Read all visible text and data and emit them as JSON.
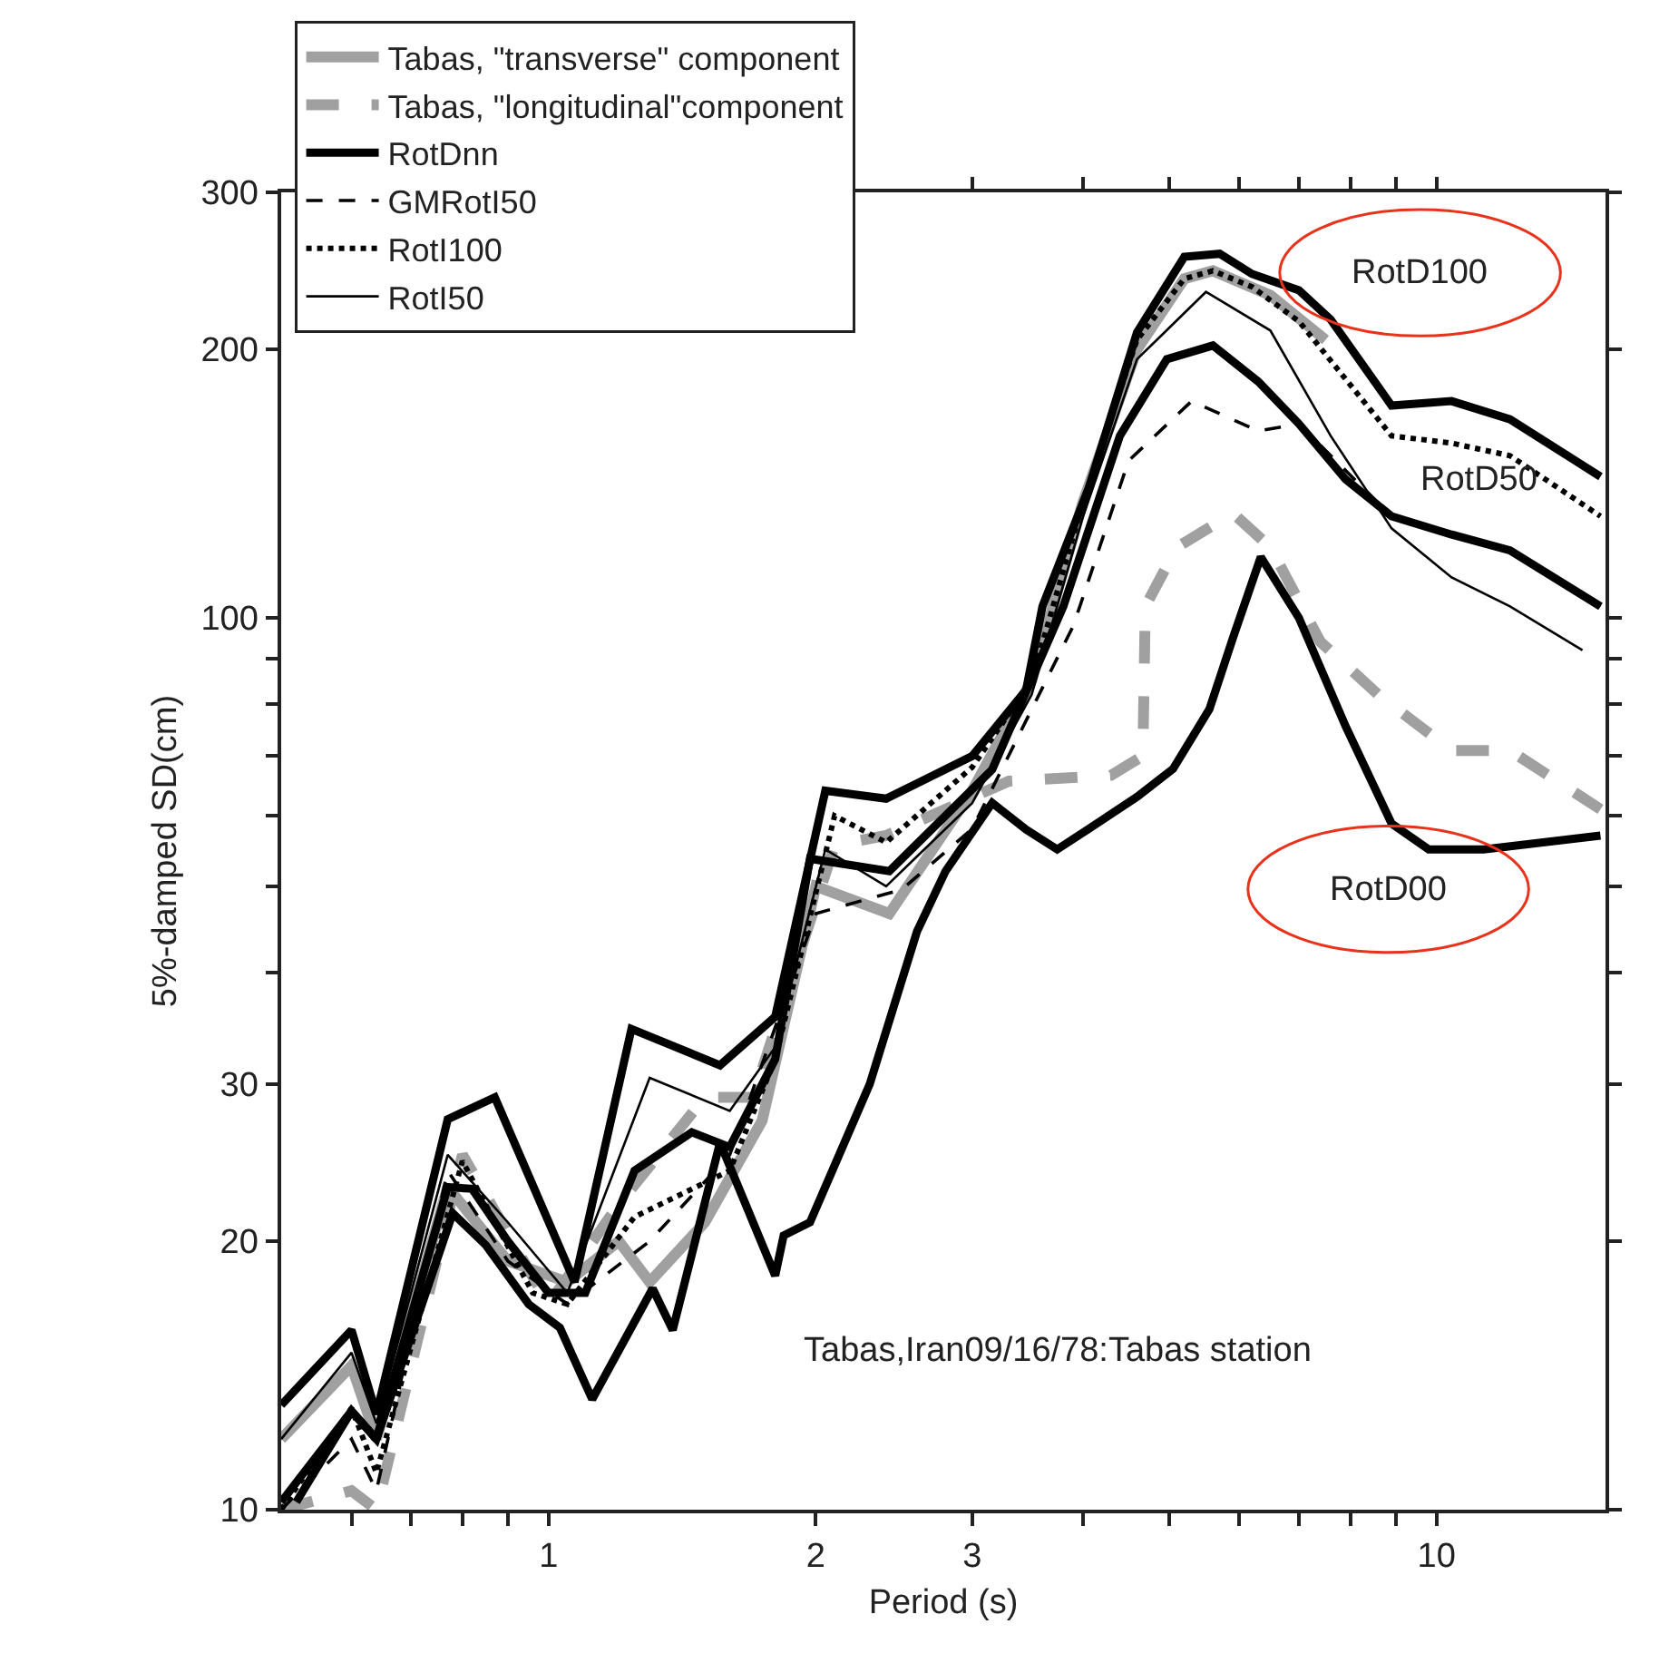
{
  "chart_data": {
    "type": "line",
    "xlabel": "Period (s)",
    "ylabel": "5%-damped SD(cm)",
    "log": "xy",
    "grid": false,
    "legend": "top left",
    "marker": "none",
    "xlim": [
      0.5,
      15.5
    ],
    "ylim": [
      10,
      300
    ],
    "xticks": [
      {
        "value": 0.6,
        "label": null
      },
      {
        "value": 0.7,
        "label": null
      },
      {
        "value": 0.8,
        "label": null
      },
      {
        "value": 0.9,
        "label": null
      },
      1,
      2,
      3,
      {
        "value": 4,
        "label": null
      },
      {
        "value": 5,
        "label": null
      },
      {
        "value": 6,
        "label": null
      },
      {
        "value": 7,
        "label": null
      },
      {
        "value": 8,
        "label": null
      },
      {
        "value": 9,
        "label": null
      },
      10
    ],
    "yticks": [
      10,
      20,
      30,
      {
        "value": 40,
        "label": null
      },
      {
        "value": 50,
        "label": null
      },
      {
        "value": 60,
        "label": null
      },
      {
        "value": 70,
        "label": null
      },
      {
        "value": 80,
        "label": null
      },
      {
        "value": 90,
        "label": null
      },
      100,
      200,
      300
    ],
    "series": [
      {
        "name": "Tabas, \"transverse\" component",
        "color": "#a0a0a0",
        "line_style": "solid",
        "x": [
          0.5,
          0.6,
          0.64,
          0.77,
          0.9,
          1.05,
          1.2,
          1.3,
          1.5,
          1.74,
          2.0,
          2.42,
          3.0,
          3.5,
          4.0,
          4.6,
          5.2,
          5.6,
          6.5,
          7.5
        ],
        "values": [
          12,
          14.5,
          12,
          23,
          19,
          18,
          20,
          18,
          21,
          27.3,
          50,
          46.6,
          64,
          85,
          135,
          200,
          240,
          245,
          230,
          205
        ]
      },
      {
        "name": "Tabas, \"longitudinal\"component",
        "color": "#a0a0a0",
        "line_style": "dashed",
        "x": [
          0.5,
          0.6,
          0.64,
          0.8,
          1.0,
          1.2,
          1.5,
          1.7,
          2.1,
          2.4,
          3.3,
          4.3,
          4.67,
          4.7,
          5.1,
          5.9,
          6.5,
          7.4,
          8.6,
          10.4,
          12.1,
          15.3
        ],
        "values": [
          10,
          10.5,
          10,
          25,
          17,
          22,
          29,
          29,
          55.6,
          57,
          65.6,
          66.6,
          70,
          103,
          120,
          131,
          120,
          94,
          82,
          71,
          71,
          61
        ]
      },
      {
        "name": "RotDnn",
        "color": "#000000",
        "line_style": "solid",
        "x": [
          0.5,
          0.6,
          0.64,
          0.77,
          0.87,
          1.07,
          1.24,
          1.56,
          1.8,
          2.05,
          2.4,
          3.0,
          3.45,
          3.6,
          4.06,
          4.6,
          5.2,
          5.7,
          6.2,
          7.0,
          7.6,
          8.9,
          10.4,
          12.1,
          15.3
        ],
        "values": [
          13.1,
          15.9,
          12.8,
          27.4,
          29,
          18,
          34.6,
          31.5,
          35.7,
          64,
          62.7,
          70,
          83,
          103,
          140,
          209,
          254,
          256,
          243,
          233,
          216,
          173,
          175,
          167,
          144
        ]
      },
      {
        "name": "GMRotI50",
        "color": "#000000",
        "line_style": "dashed",
        "x": [
          0.5,
          0.6,
          0.64,
          0.77,
          0.9,
          1.05,
          1.3,
          1.6,
          2.0,
          2.5,
          3.0,
          3.9,
          4.5,
          5.3,
          6.3,
          7.0,
          8.9,
          10.4,
          12.1,
          15.3
        ],
        "values": [
          10,
          12,
          10.5,
          24,
          19,
          17,
          20,
          25,
          46.6,
          49.6,
          58,
          98,
          150,
          175,
          162,
          165,
          130,
          124,
          119,
          103
        ]
      },
      {
        "name": "RotI100",
        "color": "#000000",
        "line_style": "dotted",
        "x": [
          0.5,
          0.6,
          0.64,
          0.8,
          0.96,
          1.05,
          1.25,
          1.6,
          1.8,
          2.1,
          2.4,
          3.0,
          3.5,
          4.0,
          4.6,
          5.2,
          5.6,
          6.2,
          7.0,
          8.9,
          10.4,
          12.1,
          15.3
        ],
        "values": [
          10,
          13,
          11,
          24.6,
          17.5,
          17,
          21.3,
          24,
          32,
          60,
          56,
          68,
          85,
          135,
          205,
          240,
          245,
          235,
          215,
          160,
          157,
          152,
          130
        ]
      },
      {
        "name": "RotI50",
        "color": "#000000",
        "line_style": "solid",
        "x": [
          0.5,
          0.6,
          0.64,
          0.77,
          0.9,
          1.05,
          1.3,
          1.6,
          1.8,
          2.05,
          2.4,
          3.0,
          3.5,
          4.0,
          4.6,
          5.5,
          6.5,
          7.6,
          8.9,
          10.4,
          12.1,
          14.6
        ],
        "values": [
          12,
          15,
          12.5,
          25,
          21,
          17.5,
          30.5,
          28,
          33,
          55,
          50,
          62,
          82,
          130,
          195,
          232,
          210,
          160,
          126,
          111,
          103,
          92
        ]
      },
      {
        "color": "#000000",
        "line_style": "solid",
        "x": [
          0.5,
          0.6,
          0.64,
          0.77,
          0.82,
          0.9,
          1.0,
          1.1,
          1.25,
          1.45,
          1.6,
          1.8,
          1.97,
          2.42,
          3.16,
          3.8,
          4.4,
          4.97,
          5.6,
          6.3,
          7.0,
          7.9,
          8.9,
          10.4,
          12.1,
          15.3
        ],
        "values": [
          10.2,
          12.9,
          12,
          23,
          22.9,
          20,
          17.5,
          17.5,
          24,
          26.5,
          25.5,
          32,
          53.7,
          52,
          67.6,
          103,
          160,
          195,
          202,
          184,
          165,
          143,
          130,
          124,
          119,
          103
        ]
      },
      {
        "color": "#000000",
        "line_style": "solid",
        "x": [
          0.52,
          0.6,
          0.64,
          0.78,
          0.85,
          0.95,
          1.03,
          1.12,
          1.31,
          1.38,
          1.56,
          1.8,
          1.84,
          1.97,
          2.3,
          2.6,
          2.8,
          3.16,
          3.45,
          3.74,
          4.06,
          4.6,
          5.05,
          5.55,
          5.9,
          6.34,
          7.0,
          7.9,
          8.9,
          9.8,
          11.3,
          15.3
        ],
        "values": [
          10.2,
          12.9,
          12,
          21.5,
          19.8,
          17,
          16,
          13.3,
          17.7,
          15.9,
          25.8,
          18.3,
          20.3,
          21,
          30,
          44.5,
          52,
          62,
          57.9,
          55,
          58,
          63,
          67.7,
          79,
          95,
          117,
          100,
          75.6,
          58.8,
          55,
          55,
          57
        ]
      }
    ],
    "annotations": [
      "RotD100",
      "RotD50",
      "RotD00",
      "Tabas,Iran09/16/78:Tabas station"
    ]
  }
}
